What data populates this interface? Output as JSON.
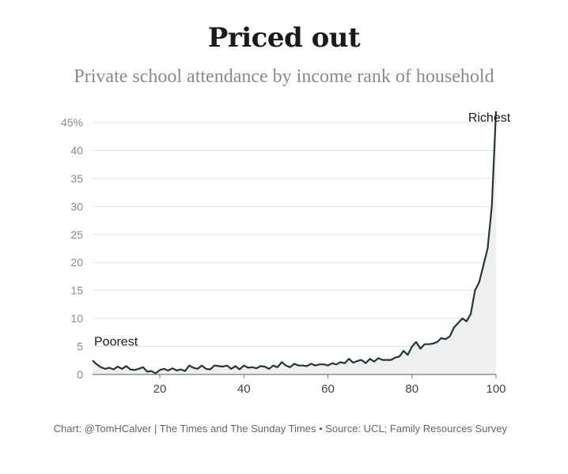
{
  "header": {
    "title": "Priced out",
    "subtitle": "Private school attendance by income rank of household"
  },
  "footer": {
    "credit": "Chart: @TomHCalver | The Times and The Sunday Times • Source: UCL; Family Resources Survey"
  },
  "colors": {
    "line": "#23373b",
    "area": "#efefef",
    "grid": "#e3e3e3",
    "axis": "#7a7a7a"
  },
  "chart_data": {
    "type": "area",
    "title": "Priced out",
    "subtitle": "Private school attendance by income rank of household",
    "xlabel": "",
    "ylabel": "",
    "xlim": [
      4,
      100
    ],
    "ylim": [
      0,
      45
    ],
    "grid": true,
    "y_ticks": [
      "0",
      "5",
      "10",
      "15",
      "20",
      "25",
      "30",
      "35",
      "40",
      "45%"
    ],
    "x_ticks": [
      "20",
      "40",
      "60",
      "80",
      "100"
    ],
    "annotations": [
      {
        "text": "Poorest",
        "x": 4,
        "y": 5
      },
      {
        "text": "Richest",
        "x": 93,
        "y": 45
      }
    ],
    "series": [
      {
        "x": [
          4,
          5,
          6,
          7,
          8,
          9,
          10,
          11,
          12,
          13,
          14,
          15,
          16,
          17,
          18,
          19,
          20,
          21,
          22,
          23,
          24,
          25,
          26,
          27,
          28,
          29,
          30,
          31,
          32,
          33,
          34,
          35,
          36,
          37,
          38,
          39,
          40,
          41,
          42,
          43,
          44,
          45,
          46,
          47,
          48,
          49,
          50,
          51,
          52,
          53,
          54,
          55,
          56,
          57,
          58,
          59,
          60,
          61,
          62,
          63,
          64,
          65,
          66,
          67,
          68,
          69,
          70,
          71,
          72,
          73,
          74,
          75,
          76,
          77,
          78,
          79,
          80,
          81,
          82,
          83,
          84,
          85,
          86,
          87,
          88,
          89,
          90,
          91,
          92,
          93,
          94,
          95,
          96,
          97,
          98,
          99,
          100
        ],
        "values": [
          2.5,
          1.8,
          1.3,
          1.0,
          1.2,
          0.9,
          1.4,
          1.0,
          1.5,
          0.9,
          0.8,
          1.0,
          1.3,
          0.5,
          0.6,
          0.2,
          0.8,
          1.0,
          0.7,
          1.1,
          0.7,
          0.9,
          0.6,
          1.6,
          1.2,
          1.0,
          1.6,
          1.0,
          0.9,
          1.6,
          1.5,
          1.4,
          1.6,
          1.0,
          1.5,
          0.9,
          1.6,
          1.2,
          1.3,
          1.1,
          1.5,
          1.4,
          1.0,
          1.6,
          1.3,
          2.2,
          1.6,
          1.3,
          1.9,
          1.6,
          1.6,
          1.5,
          1.9,
          1.6,
          1.8,
          1.8,
          1.6,
          2.0,
          1.8,
          2.2,
          2.0,
          2.8,
          2.1,
          2.4,
          2.6,
          2.0,
          2.8,
          2.3,
          2.9,
          2.6,
          2.6,
          2.6,
          3.0,
          3.2,
          4.2,
          3.5,
          5.0,
          5.8,
          4.6,
          5.4,
          5.4,
          5.5,
          5.8,
          6.5,
          6.3,
          6.8,
          8.4,
          9.2,
          10.0,
          9.5,
          10.8,
          15.0,
          16.5,
          19.5,
          22.5,
          30.0,
          47.0
        ]
      }
    ]
  }
}
